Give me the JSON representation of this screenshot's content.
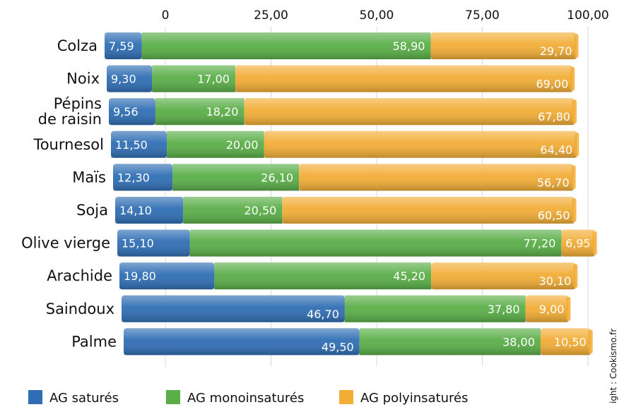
{
  "chart_data": {
    "type": "bar",
    "orientation": "horizontal",
    "stacked": true,
    "categories": [
      "Colza",
      "Noix",
      "Pépins\nde raisin",
      "Tournesol",
      "Maïs",
      "Soja",
      "Olive vierge",
      "Arachide",
      "Saindoux",
      "Palme"
    ],
    "series": [
      {
        "name": "AG saturés",
        "color": "#2f6eb4",
        "values": [
          7.59,
          9.3,
          9.56,
          11.5,
          12.3,
          14.1,
          15.1,
          19.8,
          46.7,
          49.5
        ],
        "labels": [
          "7,59",
          "9,30",
          "9,56",
          "11,50",
          "12,30",
          "14,10",
          "15,10",
          "19,80",
          "46,70",
          "49,50"
        ]
      },
      {
        "name": "AG monoinsaturés",
        "color": "#5aae48",
        "values": [
          58.9,
          17.0,
          18.2,
          20.0,
          26.1,
          20.5,
          77.2,
          45.2,
          37.8,
          38.0
        ],
        "labels": [
          "58,90",
          "17,00",
          "18,20",
          "20,00",
          "26,10",
          "20,50",
          "77,20",
          "45,20",
          "37,80",
          "38,00"
        ]
      },
      {
        "name": "AG polyinsaturés",
        "color": "#f2ad36",
        "values": [
          29.7,
          69.0,
          67.8,
          64.4,
          56.7,
          60.5,
          6.95,
          30.1,
          9.0,
          10.5
        ],
        "labels": [
          "29,70",
          "69,00",
          "67,80",
          "64,40",
          "56,70",
          "60,50",
          "6,95",
          "30,10",
          "9,00",
          "10,50"
        ]
      }
    ],
    "x_ticks": [
      "0",
      "25,00",
      "50,00",
      "75,00",
      "100,00"
    ],
    "x_tick_values": [
      0,
      25,
      50,
      75,
      100
    ],
    "xlim": [
      0,
      100
    ],
    "legend_position": "bottom",
    "credit": "ight : Cookismo.fr"
  }
}
